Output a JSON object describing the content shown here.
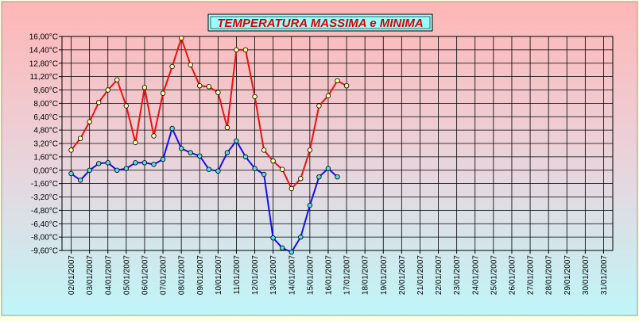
{
  "chart_data": {
    "type": "line",
    "title": "TEMPERATURA MASSIMA e MINIMA",
    "xlabel": "",
    "ylabel": "",
    "ylim": [
      -9.6,
      16.0
    ],
    "y_ticks": [
      "16,00°C",
      "14,40°C",
      "12,80°C",
      "11,20°C",
      "9,60°C",
      "8,00°C",
      "6,40°C",
      "4,80°C",
      "3,20°C",
      "1,60°C",
      "0,00°C",
      "-1,60°C",
      "-3,20°C",
      "-4,80°C",
      "-6,40°C",
      "-8,00°C",
      "-9,60°C"
    ],
    "x_ticks": [
      "02/01/2007",
      "03/01/2007",
      "04/01/2007",
      "05/01/2007",
      "06/01/2007",
      "07/01/2007",
      "08/01/2007",
      "09/01/2007",
      "10/01/2007",
      "11/01/2007",
      "12/01/2007",
      "13/01/2007",
      "14/01/2007",
      "15/01/2007",
      "16/01/2007",
      "17/01/2007",
      "18/01/2007",
      "19/01/2007",
      "20/01/2007",
      "21/01/2007",
      "22/01/2007",
      "23/01/2007",
      "24/01/2007",
      "25/01/2007",
      "26/01/2007",
      "27/01/2007",
      "28/01/2007",
      "29/01/2007",
      "30/01/2007",
      "31/01/2007"
    ],
    "grid": true,
    "legend": "none",
    "series": [
      {
        "color": "#ee1111",
        "marker_fill": "#ffffaa",
        "points": [
          [
            0.0,
            2.4
          ],
          [
            0.5,
            3.8
          ],
          [
            1.0,
            5.8
          ],
          [
            1.5,
            8.1
          ],
          [
            2.0,
            9.6
          ],
          [
            2.5,
            10.8
          ],
          [
            3.0,
            7.7
          ],
          [
            3.5,
            3.3
          ],
          [
            4.0,
            9.9
          ],
          [
            4.5,
            4.1
          ],
          [
            5.0,
            9.2
          ],
          [
            5.5,
            12.4
          ],
          [
            6.0,
            15.8
          ],
          [
            6.5,
            12.6
          ],
          [
            7.0,
            10.1
          ],
          [
            7.5,
            10.0
          ],
          [
            8.0,
            9.3
          ],
          [
            8.5,
            5.1
          ],
          [
            9.0,
            14.4
          ],
          [
            9.5,
            14.4
          ],
          [
            10.0,
            8.8
          ],
          [
            10.5,
            2.4
          ],
          [
            11.0,
            1.1
          ],
          [
            11.5,
            0.1
          ],
          [
            12.0,
            -2.2
          ],
          [
            12.5,
            -1.0
          ],
          [
            13.0,
            2.4
          ],
          [
            13.5,
            7.7
          ],
          [
            14.0,
            8.9
          ],
          [
            14.5,
            10.7
          ],
          [
            15.0,
            10.1
          ]
        ]
      },
      {
        "color": "#1111ee",
        "marker_fill": "#55dddd",
        "points": [
          [
            0.0,
            -0.4
          ],
          [
            0.5,
            -1.2
          ],
          [
            1.0,
            0.0
          ],
          [
            1.5,
            0.8
          ],
          [
            2.0,
            0.9
          ],
          [
            2.5,
            0.0
          ],
          [
            3.0,
            0.2
          ],
          [
            3.5,
            0.9
          ],
          [
            4.0,
            0.9
          ],
          [
            4.5,
            0.7
          ],
          [
            5.0,
            1.3
          ],
          [
            5.5,
            5.0
          ],
          [
            6.0,
            2.6
          ],
          [
            6.5,
            2.1
          ],
          [
            7.0,
            1.7
          ],
          [
            7.5,
            0.1
          ],
          [
            8.0,
            -0.1
          ],
          [
            8.5,
            2.1
          ],
          [
            9.0,
            3.5
          ],
          [
            9.5,
            1.6
          ],
          [
            10.0,
            0.2
          ],
          [
            10.5,
            -0.5
          ],
          [
            11.0,
            -8.1
          ],
          [
            11.5,
            -9.3
          ],
          [
            12.0,
            -9.8
          ],
          [
            12.5,
            -8.0
          ],
          [
            13.0,
            -4.2
          ],
          [
            13.5,
            -0.8
          ],
          [
            14.0,
            0.2
          ],
          [
            14.5,
            -0.8
          ]
        ]
      }
    ]
  }
}
